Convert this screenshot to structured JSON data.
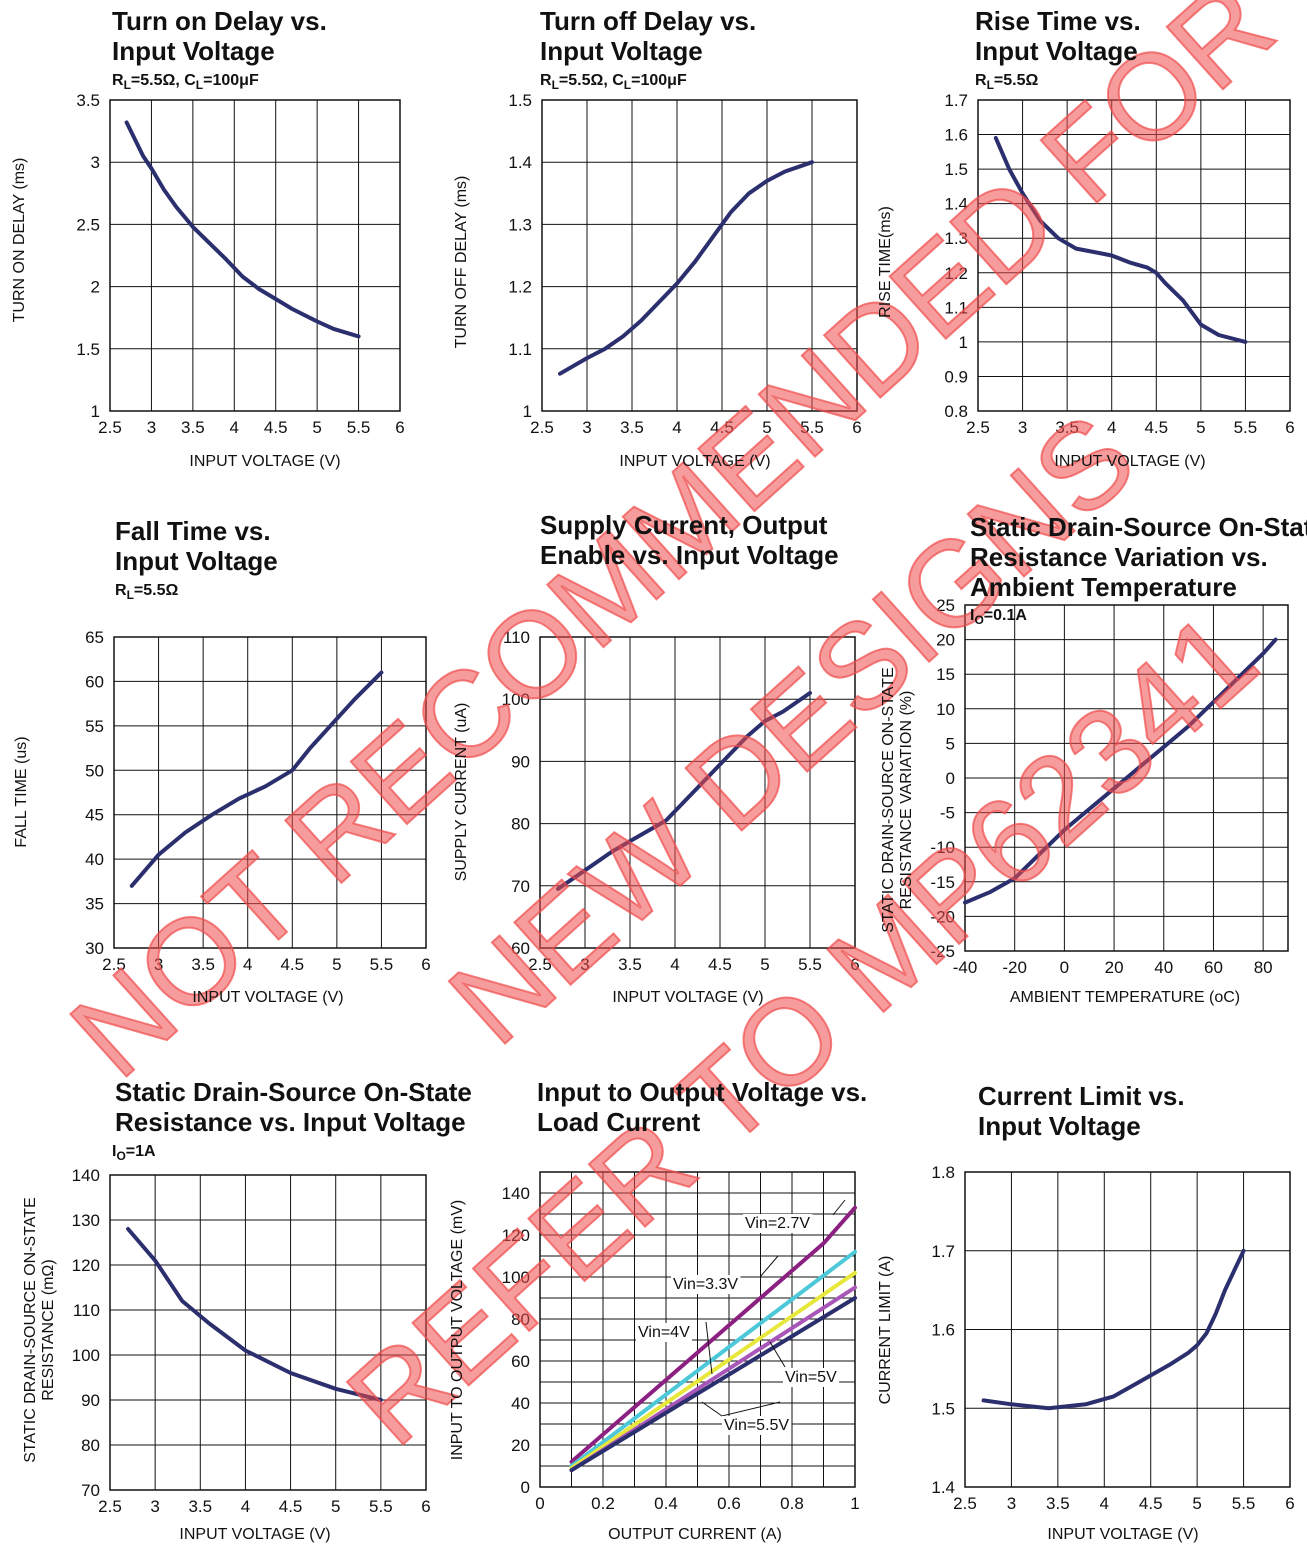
{
  "watermark": {
    "lines": [
      "NOT RECOMMENDED FOR",
      "NEW DESIGNS",
      "REFER TO MP62341"
    ],
    "color": "#ef4b4b"
  },
  "chart_data": [
    {
      "id": "c1",
      "type": "line",
      "title": [
        "Turn on Delay vs.",
        "Input Voltage"
      ],
      "subtitle": {
        "parts": [
          "R",
          "L",
          "=5.5Ω, C",
          "L",
          "=100μF"
        ]
      },
      "xlabel": "INPUT VOLTAGE (V)",
      "ylabel": "TURN ON DELAY (ms)",
      "xlim": [
        2.5,
        6
      ],
      "ylim": [
        1,
        3.5
      ],
      "xticks": [
        "2.5",
        "3",
        "3.5",
        "4",
        "4.5",
        "5",
        "5.5",
        "6"
      ],
      "yticks": [
        "1",
        "1.5",
        "2",
        "2.5",
        "3",
        "3.5"
      ],
      "grid": true,
      "series": [
        {
          "color": "#2c2f6e",
          "x": [
            2.7,
            2.9,
            3.0,
            3.15,
            3.3,
            3.5,
            3.7,
            3.9,
            4.1,
            4.3,
            4.5,
            4.7,
            5.0,
            5.2,
            5.5
          ],
          "y": [
            3.32,
            3.05,
            2.95,
            2.78,
            2.64,
            2.48,
            2.35,
            2.22,
            2.08,
            1.98,
            1.9,
            1.82,
            1.72,
            1.66,
            1.6
          ]
        }
      ]
    },
    {
      "id": "c2",
      "type": "line",
      "title": [
        "Turn off Delay vs.",
        "Input Voltage"
      ],
      "subtitle": {
        "parts": [
          "R",
          "L",
          "=5.5Ω, C",
          "L",
          "=100μF"
        ]
      },
      "xlabel": "INPUT VOLTAGE (V)",
      "ylabel": "TURN OFF DELAY (ms)",
      "xlim": [
        2.5,
        6
      ],
      "ylim": [
        1,
        1.5
      ],
      "xticks": [
        "2.5",
        "3",
        "3.5",
        "4",
        "4.5",
        "5",
        "5.5",
        "6"
      ],
      "yticks": [
        "1",
        "1.1",
        "1.2",
        "1.3",
        "1.4",
        "1.5"
      ],
      "grid": true,
      "series": [
        {
          "color": "#2c2f6e",
          "x": [
            2.7,
            3.0,
            3.2,
            3.4,
            3.6,
            3.8,
            4.0,
            4.2,
            4.4,
            4.6,
            4.8,
            5.0,
            5.2,
            5.4,
            5.5
          ],
          "y": [
            1.06,
            1.085,
            1.1,
            1.12,
            1.145,
            1.175,
            1.205,
            1.24,
            1.28,
            1.32,
            1.35,
            1.37,
            1.385,
            1.395,
            1.4
          ]
        }
      ]
    },
    {
      "id": "c3",
      "type": "line",
      "title": [
        "Rise Time vs.",
        "Input Voltage"
      ],
      "subtitle": {
        "parts": [
          "R",
          "L",
          "=5.5Ω"
        ]
      },
      "xlabel": "INPUT VOLTAGE (V)",
      "ylabel": "RISE TIME(ms)",
      "xlim": [
        2.5,
        6
      ],
      "ylim": [
        0.8,
        1.7
      ],
      "xticks": [
        "2.5",
        "3",
        "3.5",
        "4",
        "4.5",
        "5",
        "5.5",
        "6"
      ],
      "yticks": [
        "0.8",
        "0.9",
        "1",
        "1.1",
        "1.2",
        "1.3",
        "1.4",
        "1.5",
        "1.6",
        "1.7"
      ],
      "grid": true,
      "series": [
        {
          "color": "#2c2f6e",
          "x": [
            2.7,
            2.85,
            3.0,
            3.2,
            3.4,
            3.6,
            3.8,
            4.0,
            4.2,
            4.4,
            4.5,
            4.6,
            4.8,
            5.0,
            5.2,
            5.5
          ],
          "y": [
            1.59,
            1.5,
            1.43,
            1.35,
            1.3,
            1.27,
            1.26,
            1.25,
            1.23,
            1.215,
            1.2,
            1.17,
            1.12,
            1.05,
            1.02,
            1.0
          ]
        }
      ]
    },
    {
      "id": "c4",
      "type": "line",
      "title": [
        "Fall Time vs.",
        "Input Voltage"
      ],
      "subtitle": {
        "parts": [
          "R",
          "L",
          "=5.5Ω"
        ]
      },
      "xlabel": "INPUT VOLTAGE (V)",
      "ylabel": "FALL TIME (us)",
      "xlim": [
        2.5,
        6
      ],
      "ylim": [
        30,
        65
      ],
      "xticks": [
        "2.5",
        "3",
        "3.5",
        "4",
        "4.5",
        "5",
        "5.5",
        "6"
      ],
      "yticks": [
        "30",
        "35",
        "40",
        "45",
        "50",
        "55",
        "60",
        "65"
      ],
      "grid": true,
      "series": [
        {
          "color": "#2c2f6e",
          "x": [
            2.7,
            3.0,
            3.3,
            3.6,
            3.9,
            4.2,
            4.5,
            4.7,
            5.0,
            5.2,
            5.5
          ],
          "y": [
            37,
            40.5,
            43,
            45,
            46.8,
            48.2,
            50,
            52.5,
            55.8,
            58,
            61
          ]
        }
      ]
    },
    {
      "id": "c5",
      "type": "line",
      "title": [
        "Supply Current, Output",
        "Enable vs. Input Voltage"
      ],
      "subtitle": null,
      "xlabel": "INPUT VOLTAGE (V)",
      "ylabel": "SUPPLY CURRENT (uA)",
      "xlim": [
        2.5,
        6
      ],
      "ylim": [
        60,
        110
      ],
      "xticks": [
        "2.5",
        "3",
        "3.5",
        "4",
        "4.5",
        "5",
        "5.5",
        "6"
      ],
      "yticks": [
        "60",
        "70",
        "80",
        "90",
        "100",
        "110"
      ],
      "grid": true,
      "series": [
        {
          "color": "#2c2f6e",
          "x": [
            2.7,
            3.0,
            3.3,
            3.6,
            3.9,
            4.2,
            4.5,
            4.8,
            5.0,
            5.2,
            5.5
          ],
          "y": [
            69.5,
            72.5,
            75.5,
            78,
            80.5,
            85,
            89.5,
            94,
            96.5,
            98,
            101
          ]
        }
      ]
    },
    {
      "id": "c6",
      "type": "line",
      "title": [
        "Static Drain-Source On-State",
        "Resistance Variation vs.",
        "Ambient Temperature"
      ],
      "subtitle": {
        "parts": [
          "I",
          "O",
          "=0.1A"
        ]
      },
      "xlabel": "AMBIENT TEMPERATURE (oC)",
      "ylabel": [
        "STATIC DRAIN-SOURCE ON-STATE",
        "RESISTANCE VARIATION (%)"
      ],
      "xlim": [
        -40,
        90
      ],
      "ylim": [
        -25,
        25
      ],
      "xticks": [
        "-40",
        "-20",
        "0",
        "20",
        "40",
        "60",
        "80"
      ],
      "yticks": [
        "-25",
        "-20",
        "-15",
        "-10",
        "-5",
        "0",
        "5",
        "10",
        "15",
        "20",
        "25"
      ],
      "grid": true,
      "series": [
        {
          "color": "#2c2f6e",
          "x": [
            -40,
            -30,
            -20,
            -10,
            0,
            10,
            20,
            30,
            40,
            50,
            60,
            70,
            80,
            85
          ],
          "y": [
            -18,
            -16.5,
            -14.5,
            -11,
            -7.5,
            -4.5,
            -1.5,
            1.5,
            4.5,
            7.5,
            11,
            14.5,
            18,
            20
          ]
        }
      ]
    },
    {
      "id": "c7",
      "type": "line",
      "title": [
        "Static Drain-Source On-State",
        "Resistance vs. Input Voltage"
      ],
      "subtitle": {
        "parts": [
          "I",
          "O",
          "=1A"
        ]
      },
      "xlabel": "INPUT VOLTAGE (V)",
      "ylabel": [
        "STATIC DRAIN-SOURCE ON-STATE",
        "RESISTANCE (mΩ)"
      ],
      "xlim": [
        2.5,
        6
      ],
      "ylim": [
        70,
        140
      ],
      "xticks": [
        "2.5",
        "3",
        "3.5",
        "4",
        "4.5",
        "5",
        "5.5",
        "6"
      ],
      "yticks": [
        "70",
        "80",
        "90",
        "100",
        "110",
        "120",
        "130",
        "140"
      ],
      "grid": true,
      "series": [
        {
          "color": "#2c2f6e",
          "x": [
            2.7,
            3.0,
            3.3,
            3.6,
            4.0,
            4.5,
            5.0,
            5.5
          ],
          "y": [
            128,
            121,
            112,
            107,
            101,
            96,
            92.5,
            90
          ]
        }
      ]
    },
    {
      "id": "c8",
      "type": "line",
      "title": [
        "Input to Output Voltage vs.",
        "Load Current"
      ],
      "subtitle": null,
      "xlabel": "OUTPUT CURRENT (A)",
      "ylabel": "INPUT TO OUTPUT VOLTAGE (mV)",
      "xlim": [
        0,
        1
      ],
      "ylim": [
        0,
        150
      ],
      "xticks": [
        "0",
        "0.2",
        "0.4",
        "0.6",
        "0.8",
        "1"
      ],
      "yticks": [
        "0",
        "20",
        "40",
        "60",
        "80",
        "100",
        "120",
        "140"
      ],
      "grid": "fine",
      "series": [
        {
          "name": "Vin=2.7V",
          "color": "#8b2080",
          "x": [
            0.1,
            0.9,
            1.0
          ],
          "y": [
            12,
            116,
            133
          ]
        },
        {
          "name": "Vin=3.3V",
          "color": "#4cc8d8",
          "x": [
            0.1,
            1.0
          ],
          "y": [
            10,
            112
          ]
        },
        {
          "name": "Vin=4V",
          "color": "#e8e83c",
          "x": [
            0.1,
            1.0
          ],
          "y": [
            9,
            102
          ]
        },
        {
          "name": "Vin=5V",
          "color": "#a857b8",
          "x": [
            0.1,
            1.0
          ],
          "y": [
            8,
            95
          ]
        },
        {
          "name": "Vin=5.5V",
          "color": "#2c2f6e",
          "x": [
            0.1,
            1.0
          ],
          "y": [
            8,
            90
          ]
        }
      ],
      "annotations": [
        "Vin=2.7V",
        "Vin=3.3V",
        "Vin=4V",
        "Vin=5V",
        "Vin=5.5V"
      ]
    },
    {
      "id": "c9",
      "type": "line",
      "title": [
        "Current Limit vs.",
        "Input Voltage"
      ],
      "subtitle": null,
      "xlabel": "INPUT VOLTAGE (V)",
      "ylabel": "CURRENT LIMIT (A)",
      "xlim": [
        2.5,
        6
      ],
      "ylim": [
        1.4,
        1.8
      ],
      "xticks": [
        "2.5",
        "3",
        "3.5",
        "4",
        "4.5",
        "5",
        "5.5",
        "6"
      ],
      "yticks": [
        "1.4",
        "1.5",
        "1.6",
        "1.7",
        "1.8"
      ],
      "grid": true,
      "series": [
        {
          "color": "#2c2f6e",
          "x": [
            2.7,
            3.0,
            3.4,
            3.8,
            4.1,
            4.4,
            4.7,
            4.9,
            5.0,
            5.1,
            5.2,
            5.3,
            5.4,
            5.5
          ],
          "y": [
            1.51,
            1.505,
            1.5,
            1.505,
            1.515,
            1.535,
            1.555,
            1.57,
            1.58,
            1.595,
            1.62,
            1.65,
            1.675,
            1.7
          ]
        }
      ]
    }
  ]
}
